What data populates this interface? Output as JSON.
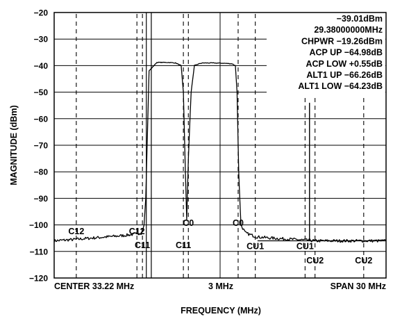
{
  "chart_data": {
    "type": "line",
    "title": "",
    "xlabel": "FREQUENCY (MHz)",
    "ylabel": "MAGNITUDE (dBm)",
    "ylim": [
      -120,
      -20
    ],
    "yticks": [
      -20,
      -30,
      -40,
      -50,
      -60,
      -70,
      -80,
      -90,
      -100,
      -110,
      -120
    ],
    "xlim": [
      18.22,
      48.22
    ],
    "x_tick_labels": {
      "left": "CENTER 33.22 MHz",
      "center": "3 MHz",
      "right": "SPAN 30 MHz"
    },
    "grid": "on",
    "series": [
      {
        "x": [
          18.22,
          20.0,
          21.5,
          23.0,
          24.5,
          25.5,
          26.1,
          26.35,
          26.5,
          26.8,
          27.5,
          28.5,
          29.2,
          29.7,
          29.9,
          30.05,
          30.2,
          30.35,
          30.6,
          30.9,
          31.2,
          31.4,
          31.7,
          32.5,
          33.5,
          34.3,
          34.6,
          34.75,
          34.9,
          35.1,
          35.5,
          36.5,
          38.0,
          40.0,
          42.0,
          44.0,
          46.0,
          48.22
        ],
        "y": [
          -106.0,
          -105.5,
          -105.0,
          -104.5,
          -104.0,
          -103.5,
          -103.0,
          -100.0,
          -90.0,
          -42.0,
          -38.8,
          -38.8,
          -39.0,
          -40.0,
          -50.0,
          -75.0,
          -98.0,
          -75.0,
          -50.0,
          -40.0,
          -39.5,
          -39.2,
          -39.0,
          -39.0,
          -39.1,
          -39.3,
          -40.0,
          -50.0,
          -80.0,
          -100.0,
          -103.0,
          -104.5,
          -105.0,
          -105.5,
          -106.0,
          -106.0,
          -106.0,
          -106.0
        ]
      }
    ],
    "markers": [
      {
        "label": "C12",
        "x": 20.22
      },
      {
        "label": "C12",
        "x": 25.7
      },
      {
        "label": "C11",
        "x": 26.2
      },
      {
        "label": "C11",
        "x": 29.9
      },
      {
        "label": "C0",
        "x": 30.35
      },
      {
        "label": "C0",
        "x": 34.85
      },
      {
        "label": "CU1",
        "x": 36.4
      },
      {
        "label": "CU1",
        "x": 40.9
      },
      {
        "label": "CU2",
        "x": 41.8
      },
      {
        "label": "CU2",
        "x": 46.2
      }
    ],
    "marker_line": {
      "x": 41.3,
      "y_top": -54.0,
      "y_bottom": -106.0
    },
    "readouts": [
      {
        "name": "",
        "value": "−39.01dBm"
      },
      {
        "name": "",
        "value": "29.38000000MHz"
      },
      {
        "name": "CHPWR",
        "value": "−19.26dBm"
      },
      {
        "name": "ACP UP",
        "value": "−64.98dB"
      },
      {
        "name": "ACP LOW",
        "value": "+0.55dB"
      },
      {
        "name": "ALT1 UP",
        "value": "−66.26dB"
      },
      {
        "name": "ALT1 LOW",
        "value": "−64.23dB"
      }
    ]
  }
}
